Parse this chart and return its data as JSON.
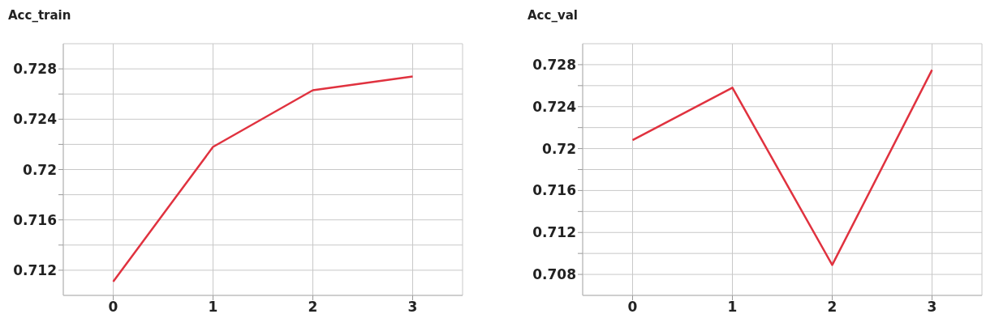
{
  "chart_data": [
    {
      "type": "line",
      "title": "Acc_train",
      "x": [
        0,
        1,
        2,
        3
      ],
      "series": [
        {
          "color": "#e0323f",
          "values": [
            0.7111,
            0.7218,
            0.7263,
            0.7274
          ]
        }
      ],
      "xlim": [
        -0.5,
        3.5
      ],
      "xticks": [
        0,
        1,
        2,
        3
      ],
      "ylim": [
        0.71,
        0.73
      ],
      "yticks": [
        0.712,
        {
          "value": 0.714,
          "label": null
        },
        0.716,
        {
          "value": 0.718,
          "label": null
        },
        0.72,
        {
          "value": 0.722,
          "label": null
        },
        0.724,
        {
          "value": 0.726,
          "label": null
        },
        0.728
      ],
      "grid": true,
      "marker": "none",
      "line_style": "solid"
    },
    {
      "type": "line",
      "title": "Acc_val",
      "x": [
        0,
        1,
        2,
        3
      ],
      "series": [
        {
          "color": "#e0323f",
          "values": [
            0.7208,
            0.7258,
            0.7089,
            0.7275
          ]
        }
      ],
      "xlim": [
        -0.5,
        3.5
      ],
      "xticks": [
        0,
        1,
        2,
        3
      ],
      "ylim": [
        0.706,
        0.73
      ],
      "yticks": [
        0.708,
        {
          "value": 0.71,
          "label": null
        },
        0.712,
        {
          "value": 0.714,
          "label": null
        },
        0.716,
        {
          "value": 0.718,
          "label": null
        },
        0.72,
        {
          "value": 0.722,
          "label": null
        },
        0.724,
        {
          "value": 0.726,
          "label": null
        },
        0.728
      ],
      "grid": true,
      "marker": "none",
      "line_style": "solid"
    }
  ]
}
